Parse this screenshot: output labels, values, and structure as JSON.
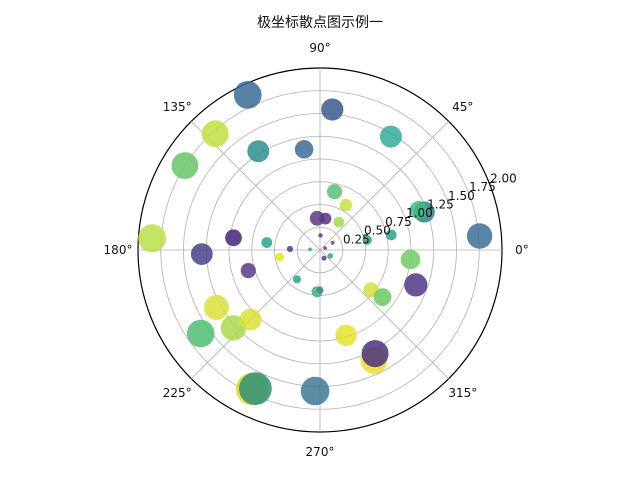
{
  "chart_data": {
    "type": "scatter",
    "projection": "polar",
    "title": "极坐标散点图示例一",
    "theta_unit": "degrees",
    "theta_ticks": [
      "0°",
      "45°",
      "90°",
      "135°",
      "180°",
      "225°",
      "270°",
      "315°"
    ],
    "r_ticks": [
      "0.25",
      "0.50",
      "0.75",
      "1.00",
      "1.25",
      "1.50",
      "1.75",
      "2.00"
    ],
    "rlim": [
      0,
      2.0
    ],
    "grid": true,
    "colormap": [
      "#440154",
      "#3b528b",
      "#21918c",
      "#5ec962",
      "#fde725"
    ],
    "points": [
      {
        "theta": 5,
        "r": 1.76,
        "area": 510,
        "color": "#3b6f99"
      },
      {
        "theta": 20,
        "r": 1.22,
        "area": 350,
        "color": "#2f7f8a"
      },
      {
        "theta": 22,
        "r": 1.17,
        "area": 260,
        "color": "#3fbb7a"
      },
      {
        "theta": 12,
        "r": 0.53,
        "area": 70,
        "color": "#2aa58b"
      },
      {
        "theta": 58,
        "r": 1.47,
        "area": 380,
        "color": "#34ab98"
      },
      {
        "theta": 85,
        "r": 1.55,
        "area": 390,
        "color": "#3b5b8f"
      },
      {
        "theta": 99,
        "r": 1.12,
        "area": 270,
        "color": "#3b6d97"
      },
      {
        "theta": 115,
        "r": 1.88,
        "area": 610,
        "color": "#3b6b97"
      },
      {
        "theta": 122,
        "r": 1.28,
        "area": 380,
        "color": "#2e8f8c"
      },
      {
        "theta": 132,
        "r": 1.72,
        "area": 560,
        "color": "#bfe041"
      },
      {
        "theta": 148,
        "r": 1.75,
        "area": 560,
        "color": "#66c768"
      },
      {
        "theta": 176,
        "r": 1.85,
        "area": 620,
        "color": "#b8df49"
      },
      {
        "theta": 172,
        "r": 0.96,
        "area": 220,
        "color": "#48227a"
      },
      {
        "theta": 172,
        "r": 0.59,
        "area": 90,
        "color": "#2aa58b"
      },
      {
        "theta": 182,
        "r": 1.3,
        "area": 370,
        "color": "#46438a"
      },
      {
        "theta": 178,
        "r": 0.33,
        "area": 30,
        "color": "#46438a"
      },
      {
        "theta": 176,
        "r": 0.11,
        "area": 10,
        "color": "#2aa58b"
      },
      {
        "theta": 88,
        "r": 0.16,
        "area": 15,
        "color": "#5b3a86"
      },
      {
        "theta": 80,
        "r": 0.35,
        "area": 110,
        "color": "#5b2f84"
      },
      {
        "theta": 76,
        "r": 0.66,
        "area": 180,
        "color": "#5fbf77"
      },
      {
        "theta": 60,
        "r": 0.57,
        "area": 120,
        "color": "#c7e03e"
      },
      {
        "theta": 56,
        "r": 0.37,
        "area": 90,
        "color": "#a6d94c"
      },
      {
        "theta": 95,
        "r": 0.35,
        "area": 170,
        "color": "#5b3a86"
      },
      {
        "theta": 20,
        "r": 0.06,
        "area": 10,
        "color": "#5b3a86"
      },
      {
        "theta": 30,
        "r": 0.16,
        "area": 12,
        "color": "#6a4a8a"
      },
      {
        "theta": 196,
        "r": 0.82,
        "area": 180,
        "color": "#5b3a86"
      },
      {
        "theta": 190,
        "r": 0.45,
        "area": 60,
        "color": "#e7e419"
      },
      {
        "theta": 209,
        "r": 1.3,
        "area": 490,
        "color": "#d9e03a"
      },
      {
        "theta": 215,
        "r": 1.6,
        "area": 600,
        "color": "#4fbe72"
      },
      {
        "theta": 222,
        "r": 1.28,
        "area": 510,
        "color": "#a9d94c"
      },
      {
        "theta": 225,
        "r": 1.08,
        "area": 370,
        "color": "#d9e03a"
      },
      {
        "theta": 244,
        "r": 1.7,
        "area": 830,
        "color": "#e7d61d"
      },
      {
        "theta": 245,
        "r": 1.68,
        "area": 840,
        "color": "#2f8f7a"
      },
      {
        "theta": 268,
        "r": 1.55,
        "area": 640,
        "color": "#3c7a94"
      },
      {
        "theta": 232,
        "r": 0.41,
        "area": 50,
        "color": "#2aa58b"
      },
      {
        "theta": 266,
        "r": 0.46,
        "area": 100,
        "color": "#38b57b"
      },
      {
        "theta": 270,
        "r": 0.44,
        "area": 40,
        "color": "#3d8a8e"
      },
      {
        "theta": 296,
        "r": 1.35,
        "area": 560,
        "color": "#f1d92a"
      },
      {
        "theta": 298,
        "r": 1.29,
        "area": 570,
        "color": "#48317f"
      },
      {
        "theta": 287,
        "r": 0.98,
        "area": 360,
        "color": "#e4e02e"
      },
      {
        "theta": 322,
        "r": 0.71,
        "area": 180,
        "color": "#d5e03a"
      },
      {
        "theta": 323,
        "r": 0.86,
        "area": 250,
        "color": "#6cc865"
      },
      {
        "theta": 340,
        "r": 1.12,
        "area": 420,
        "color": "#4d3784"
      },
      {
        "theta": 354,
        "r": 1.0,
        "area": 300,
        "color": "#6fcd62"
      },
      {
        "theta": 296,
        "r": 0.1,
        "area": 20,
        "color": "#46438a"
      },
      {
        "theta": 330,
        "r": 0.13,
        "area": 25,
        "color": "#38a585"
      },
      {
        "theta": 12,
        "r": 0.8,
        "area": 90,
        "color": "#2aa58b"
      }
    ]
  }
}
